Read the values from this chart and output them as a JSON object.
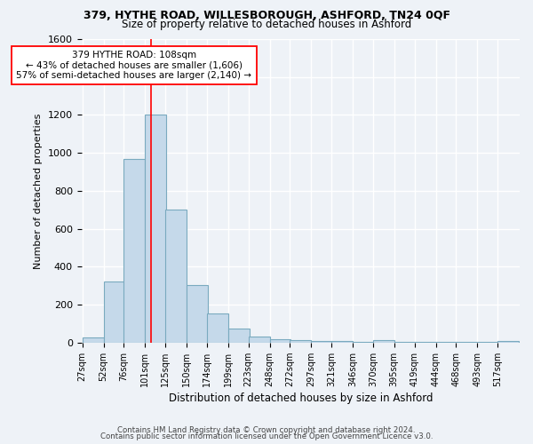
{
  "title1": "379, HYTHE ROAD, WILLESBOROUGH, ASHFORD, TN24 0QF",
  "title2": "Size of property relative to detached houses in Ashford",
  "xlabel": "Distribution of detached houses by size in Ashford",
  "ylabel": "Number of detached properties",
  "bar_labels": [
    "27sqm",
    "52sqm",
    "76sqm",
    "101sqm",
    "125sqm",
    "150sqm",
    "174sqm",
    "199sqm",
    "223sqm",
    "248sqm",
    "272sqm",
    "297sqm",
    "321sqm",
    "346sqm",
    "370sqm",
    "395sqm",
    "419sqm",
    "444sqm",
    "468sqm",
    "493sqm",
    "517sqm"
  ],
  "bar_values": [
    25,
    320,
    970,
    1200,
    700,
    305,
    155,
    75,
    30,
    20,
    13,
    10,
    10,
    5,
    13,
    5,
    5,
    5,
    5,
    5,
    10
  ],
  "bar_color": "#c5d9ea",
  "bar_edge_color": "#7aaabf",
  "red_line_x": 108,
  "bin_starts": [
    27,
    52,
    76,
    101,
    125,
    150,
    174,
    199,
    223,
    248,
    272,
    297,
    321,
    346,
    370,
    395,
    419,
    444,
    468,
    493,
    517
  ],
  "bin_width": 25,
  "ylim": [
    0,
    1600
  ],
  "annotation_line1": "379 HYTHE ROAD: 108sqm",
  "annotation_line2": "← 43% of detached houses are smaller (1,606)",
  "annotation_line3": "57% of semi-detached houses are larger (2,140) →",
  "footnote1": "Contains HM Land Registry data © Crown copyright and database right 2024.",
  "footnote2": "Contains public sector information licensed under the Open Government Licence v3.0.",
  "background_color": "#eef2f7",
  "grid_color": "#ffffff",
  "yticks": [
    0,
    200,
    400,
    600,
    800,
    1000,
    1200,
    1400,
    1600
  ]
}
